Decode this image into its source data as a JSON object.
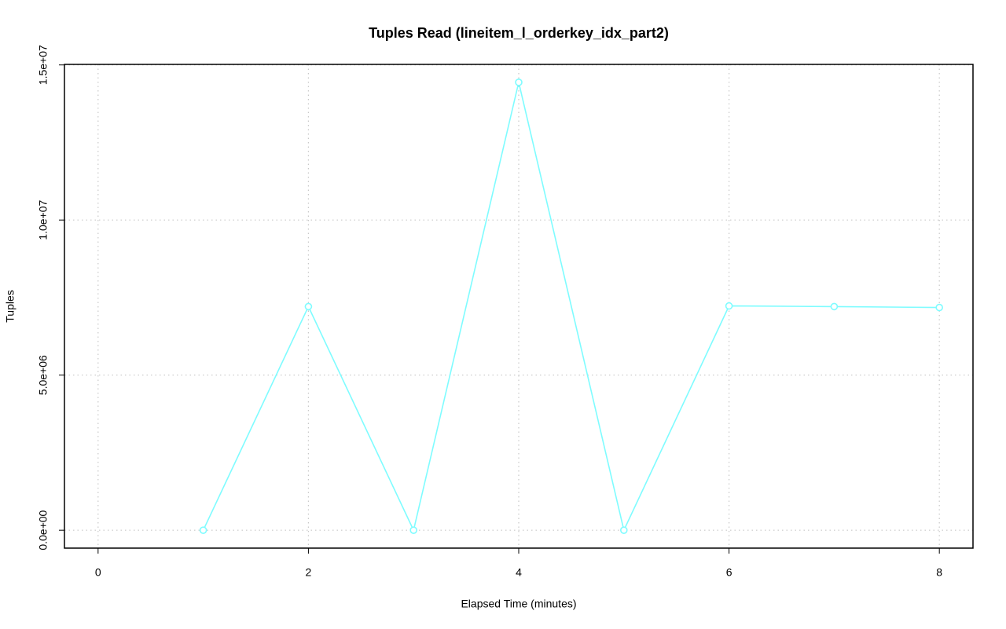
{
  "chart_data": {
    "type": "line",
    "title": "Tuples Read (lineitem_l_orderkey_idx_part2)",
    "x_label": "Elapsed Time (minutes)",
    "y_label": "Tuples",
    "x": [
      1,
      2,
      3,
      4,
      5,
      6,
      7,
      8
    ],
    "values": [
      0,
      7210000,
      0,
      14440000,
      0,
      7230000,
      7210000,
      7180000
    ],
    "color": "#7ffcff",
    "xlim": [
      -0.32,
      8.32
    ],
    "ylim": [
      -577600,
      15017600
    ],
    "xticks": [
      0,
      2,
      4,
      6,
      8
    ],
    "yticks": [
      {
        "value": 0,
        "label": "0.0e+00"
      },
      {
        "value": 5000000,
        "label": "5.0e+06"
      },
      {
        "value": 10000000,
        "label": "1.0e+07"
      },
      {
        "value": 15000000,
        "label": "1.5e+07"
      }
    ],
    "grid": true
  }
}
